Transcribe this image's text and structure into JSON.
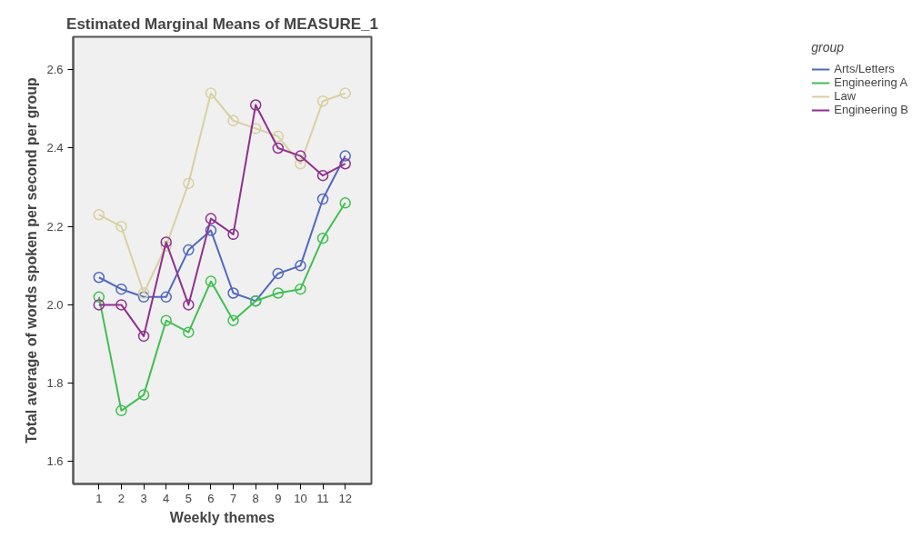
{
  "chart_data": {
    "type": "line",
    "title": "Estimated Marginal Means of MEASURE_1",
    "xlabel": "Weekly themes",
    "ylabel": "Total average of words spoken per second per group",
    "legend_title": "group",
    "x": [
      1,
      2,
      3,
      4,
      5,
      6,
      7,
      8,
      9,
      10,
      11,
      12
    ],
    "series": [
      {
        "name": "Arts/Letters",
        "color": "#5068c0",
        "values": [
          2.07,
          2.04,
          2.02,
          2.02,
          2.14,
          2.19,
          2.03,
          2.01,
          2.08,
          2.1,
          2.27,
          2.38
        ]
      },
      {
        "name": "Engineering A",
        "color": "#40c050",
        "values": [
          2.02,
          1.73,
          1.77,
          1.96,
          1.93,
          2.06,
          1.96,
          2.01,
          2.03,
          2.04,
          2.17,
          2.26
        ]
      },
      {
        "name": "Law",
        "color": "#d8d0a0",
        "values": [
          2.23,
          2.2,
          2.03,
          2.15,
          2.31,
          2.54,
          2.47,
          2.45,
          2.43,
          2.36,
          2.52,
          2.54
        ]
      },
      {
        "name": "Engineering B",
        "color": "#903090",
        "values": [
          2.0,
          2.0,
          1.92,
          2.16,
          2.0,
          2.22,
          2.18,
          2.51,
          2.4,
          2.38,
          2.33,
          2.36
        ]
      }
    ],
    "xlim": [
      -0.15,
      13.17
    ],
    "ylim": [
      1.543,
      2.684
    ],
    "xticks": [
      1,
      2,
      3,
      4,
      5,
      6,
      7,
      8,
      9,
      10,
      11,
      12
    ],
    "yticks": [
      {
        "value": 1.6,
        "label": "1.6"
      },
      {
        "value": 1.8,
        "label": "1.8"
      },
      {
        "value": 2.0,
        "label": "2.0"
      },
      {
        "value": 2.2,
        "label": "2.2"
      },
      {
        "value": 2.4,
        "label": "2.4"
      },
      {
        "value": 2.6,
        "label": "2.6"
      }
    ],
    "grid": false,
    "legend": "top right",
    "marker": "circle",
    "line_style": "solid"
  }
}
